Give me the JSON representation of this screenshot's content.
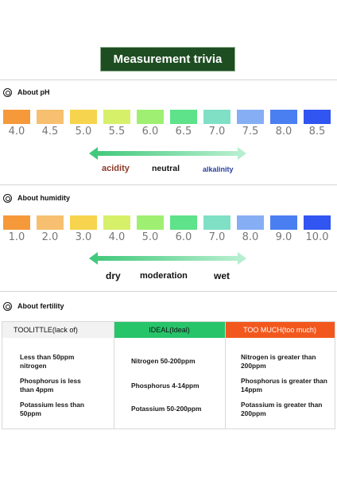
{
  "title": "Measurement trivia",
  "ph": {
    "heading": "About pH",
    "ticks": [
      "4.0",
      "4.5",
      "5.0",
      "5.5",
      "6.0",
      "6.5",
      "7.0",
      "7.5",
      "8.0",
      "8.5"
    ],
    "colors": [
      "#f5993a",
      "#f6c070",
      "#f7d44e",
      "#d6f06a",
      "#9ff072",
      "#5ee28a",
      "#7fe0c6",
      "#86aef5",
      "#4a7ff2",
      "#3055f0"
    ],
    "left_label": "acidity",
    "center_label": "neutral",
    "right_label": "alkalinity",
    "left_color": "#8b3a2a",
    "right_color": "#2a3fa0"
  },
  "humidity": {
    "heading": "About humidity",
    "ticks": [
      "1.0",
      "2.0",
      "3.0",
      "4.0",
      "5.0",
      "6.0",
      "7.0",
      "8.0",
      "9.0",
      "10.0"
    ],
    "colors": [
      "#f5993a",
      "#f6c070",
      "#f7d44e",
      "#d6f06a",
      "#9ff072",
      "#5ee28a",
      "#7fe0c6",
      "#86aef5",
      "#4a7ff2",
      "#3055f0"
    ],
    "left_label": "dry",
    "center_label": "moderation",
    "right_label": "wet"
  },
  "fertility": {
    "heading": "About fertility",
    "columns": [
      {
        "header": "TOOLITTLE(lack of)",
        "header_bg": "#f2f2f2",
        "header_color": "#111111",
        "items": [
          "Less than 50ppm nitrogen",
          "Phosphorus is less than 4ppm",
          "Potassium less than 50ppm"
        ]
      },
      {
        "header": "IDEAL(Ideal)",
        "header_bg": "#27c46a",
        "header_color": "#111111",
        "items": [
          "Nitrogen 50-200ppm",
          "Phosphorus 4-14ppm",
          "Potassium 50-200ppm"
        ]
      },
      {
        "header": "TOO MUCH(too much)",
        "header_bg": "#f2581e",
        "header_color": "#ffffff",
        "items": [
          "Nitrogen is greater than 200ppm",
          "Phosphorus is greater than 14ppm",
          "Potassium is greater than 200ppm"
        ]
      }
    ]
  },
  "icons": {
    "section_icon": "circle-target-icon",
    "arrow": "double-arrow-icon"
  }
}
